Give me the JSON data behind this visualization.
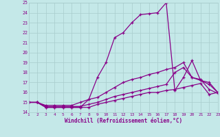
{
  "xlabel": "Windchill (Refroidissement éolien,°C)",
  "xlim": [
    1,
    23
  ],
  "ylim": [
    14,
    25
  ],
  "xticks": [
    1,
    2,
    3,
    4,
    5,
    6,
    7,
    8,
    9,
    10,
    11,
    12,
    13,
    14,
    15,
    16,
    17,
    18,
    19,
    20,
    21,
    22,
    23
  ],
  "yticks": [
    14,
    15,
    16,
    17,
    18,
    19,
    20,
    21,
    22,
    23,
    24,
    25
  ],
  "bg_color": "#c4e8e8",
  "line_color": "#880088",
  "grid_color": "#a8cccc",
  "lines": [
    {
      "x": [
        1,
        2,
        3,
        4,
        5,
        6,
        7,
        8,
        9,
        10,
        11,
        12,
        13,
        14,
        15,
        16,
        17,
        18,
        19,
        20,
        21,
        22,
        23
      ],
      "y": [
        15.0,
        15.0,
        14.5,
        14.5,
        14.5,
        14.5,
        14.5,
        15.3,
        17.5,
        19.0,
        21.5,
        22.0,
        23.0,
        23.8,
        23.9,
        24.0,
        25.0,
        16.2,
        17.5,
        19.2,
        17.2,
        16.8,
        16.0
      ]
    },
    {
      "x": [
        1,
        2,
        3,
        4,
        5,
        6,
        7,
        8,
        9,
        10,
        11,
        12,
        13,
        14,
        15,
        16,
        17,
        18,
        19,
        20,
        21,
        22,
        23
      ],
      "y": [
        15.0,
        15.0,
        14.7,
        14.7,
        14.7,
        14.7,
        15.0,
        15.3,
        15.5,
        16.0,
        16.5,
        17.0,
        17.3,
        17.5,
        17.8,
        18.0,
        18.3,
        18.5,
        19.0,
        17.5,
        17.2,
        17.0,
        16.0
      ]
    },
    {
      "x": [
        1,
        2,
        3,
        4,
        5,
        6,
        7,
        8,
        9,
        10,
        11,
        12,
        13,
        14,
        15,
        16,
        17,
        18,
        19,
        20,
        21,
        22,
        23
      ],
      "y": [
        15.0,
        15.0,
        14.6,
        14.6,
        14.6,
        14.6,
        14.6,
        14.8,
        15.0,
        15.3,
        15.6,
        15.8,
        16.0,
        16.2,
        16.4,
        16.6,
        16.8,
        18.0,
        18.5,
        17.5,
        17.3,
        16.3,
        15.9
      ]
    },
    {
      "x": [
        1,
        2,
        3,
        4,
        5,
        6,
        7,
        8,
        9,
        10,
        11,
        12,
        13,
        14,
        15,
        16,
        17,
        18,
        19,
        20,
        21,
        22,
        23
      ],
      "y": [
        15.0,
        15.0,
        14.5,
        14.5,
        14.5,
        14.5,
        14.5,
        14.5,
        14.8,
        15.0,
        15.2,
        15.4,
        15.6,
        15.8,
        16.0,
        16.0,
        16.2,
        16.3,
        16.5,
        16.7,
        16.9,
        15.8,
        16.0
      ]
    }
  ]
}
